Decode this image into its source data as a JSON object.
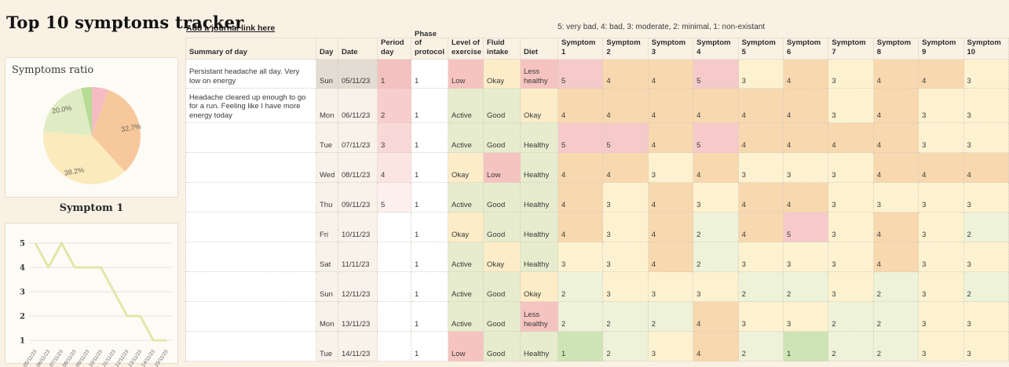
{
  "page": {
    "title": "Top 10 symptoms tracker",
    "journal_link": "Add a journal link here",
    "scale_legend": "5: very bad, 4: bad, 3: moderate, 2: minimal, 1: non-existant"
  },
  "chart_data": [
    {
      "type": "pie",
      "title": "Symptoms ratio",
      "slices": [
        {
          "label": "",
          "value": 5.5,
          "color": "#f5bcc3"
        },
        {
          "label": "32.7%",
          "value": 32.7,
          "color": "#f6c89b"
        },
        {
          "label": "38.2%",
          "value": 38.2,
          "color": "#faeabc"
        },
        {
          "label": "20.0%",
          "value": 20.0,
          "color": "#dfecc3"
        },
        {
          "label": "",
          "value": 3.6,
          "color": "#b6db95"
        }
      ],
      "legend_position": "none"
    },
    {
      "type": "line",
      "title": "Symptom 1",
      "x": [
        "05/11/23",
        "06/11/23",
        "07/11/23",
        "08/11/23",
        "09/11/23",
        "10/11/23",
        "11/11/23",
        "12/11/23",
        "13/11/23",
        "14/11/23",
        "15/11/23"
      ],
      "values": [
        5,
        4,
        5,
        4,
        4,
        4,
        3,
        2,
        2,
        1,
        1
      ],
      "ylim": [
        1,
        5
      ],
      "yticks": [
        5,
        4,
        3,
        2,
        1
      ],
      "line_color": "#e2e7a9",
      "grid": true
    }
  ],
  "table": {
    "headers": [
      "Summary of day",
      "Day",
      "Date",
      "Period day",
      "Phase of protocol",
      "Level of exercise",
      "Fluid intake",
      "Diet",
      "Symptom 1",
      "Symptom 2",
      "Symptom 3",
      "Symptom 4",
      "Symptom 5",
      "Symptom 6",
      "Symptom 7",
      "Symptom 8",
      "Symptom 9",
      "Symptom 10"
    ],
    "rows": [
      {
        "summary": "Persistant headache all day. Very low on energy",
        "day": "Sun",
        "date": "05/11/23",
        "period_day": "1",
        "phase": "1",
        "exercise": "Low",
        "fluid": "Okay",
        "diet": "Less healthy",
        "symptoms": [
          5,
          4,
          4,
          5,
          3,
          4,
          3,
          4,
          4,
          3
        ]
      },
      {
        "summary": "Headache cleared up enough to go for a run. Feeling like I have more energy today",
        "day": "Mon",
        "date": "06/11/23",
        "period_day": "2",
        "phase": "1",
        "exercise": "Active",
        "fluid": "Good",
        "diet": "Okay",
        "symptoms": [
          4,
          4,
          4,
          4,
          4,
          4,
          3,
          4,
          3,
          3
        ]
      },
      {
        "summary": "",
        "day": "Tue",
        "date": "07/11/23",
        "period_day": "3",
        "phase": "1",
        "exercise": "Active",
        "fluid": "Good",
        "diet": "Healthy",
        "symptoms": [
          5,
          5,
          4,
          5,
          4,
          4,
          4,
          4,
          3,
          3
        ]
      },
      {
        "summary": "",
        "day": "Wed",
        "date": "08/11/23",
        "period_day": "4",
        "phase": "1",
        "exercise": "Okay",
        "fluid": "Low",
        "diet": "Healthy",
        "symptoms": [
          4,
          4,
          3,
          4,
          3,
          3,
          3,
          4,
          4,
          4
        ]
      },
      {
        "summary": "",
        "day": "Thu",
        "date": "09/11/23",
        "period_day": "5",
        "phase": "1",
        "exercise": "Active",
        "fluid": "Good",
        "diet": "Healthy",
        "symptoms": [
          4,
          3,
          4,
          3,
          4,
          4,
          3,
          3,
          3,
          3
        ]
      },
      {
        "summary": "",
        "day": "Fri",
        "date": "10/11/23",
        "period_day": "",
        "phase": "1",
        "exercise": "Okay",
        "fluid": "Good",
        "diet": "Healthy",
        "symptoms": [
          4,
          3,
          4,
          2,
          4,
          5,
          3,
          4,
          3,
          2
        ]
      },
      {
        "summary": "",
        "day": "Sat",
        "date": "11/11/23",
        "period_day": "",
        "phase": "1",
        "exercise": "Active",
        "fluid": "Okay",
        "diet": "Healthy",
        "symptoms": [
          3,
          3,
          4,
          2,
          3,
          3,
          3,
          4,
          3,
          3
        ]
      },
      {
        "summary": "",
        "day": "Sun",
        "date": "12/11/23",
        "period_day": "",
        "phase": "1",
        "exercise": "Active",
        "fluid": "Good",
        "diet": "Okay",
        "symptoms": [
          2,
          3,
          3,
          3,
          2,
          2,
          3,
          2,
          3,
          2
        ]
      },
      {
        "summary": "",
        "day": "Mon",
        "date": "13/11/23",
        "period_day": "",
        "phase": "1",
        "exercise": "Active",
        "fluid": "Good",
        "diet": "Less healthy",
        "symptoms": [
          2,
          2,
          2,
          4,
          3,
          3,
          2,
          2,
          3,
          3
        ]
      },
      {
        "summary": "",
        "day": "Tue",
        "date": "14/11/23",
        "period_day": "",
        "phase": "1",
        "exercise": "Low",
        "fluid": "Good",
        "diet": "Healthy",
        "symptoms": [
          1,
          2,
          3,
          4,
          2,
          1,
          2,
          2,
          3,
          3
        ]
      }
    ]
  },
  "colors": {
    "page_background": "#faf1e5",
    "card_background": "#fdfbf6",
    "symptom_value_colors": {
      "5": "#f6caca",
      "4": "#f8d8ae",
      "3": "#fdf2d0",
      "2": "#eef2d8",
      "1": "#cfe4b5"
    },
    "category_colors": {
      "Low": "#f6c4c0",
      "Less healthy": "#f6c4c0",
      "Okay": "#fcedc8",
      "Active": "#e6eccd",
      "Good": "#e6eccd",
      "Healthy": "#e6eccd"
    },
    "period_day_colors": {
      "1": "#f3c1bf",
      "2": "#f7cecd",
      "3": "#f9d9d7",
      "4": "#fbe5e3",
      "5": "#fdf0ee"
    },
    "day_date_background": "#f9f2ea",
    "today_day_date_background": "#e2dcd2",
    "cell_background": "#ffffff"
  }
}
